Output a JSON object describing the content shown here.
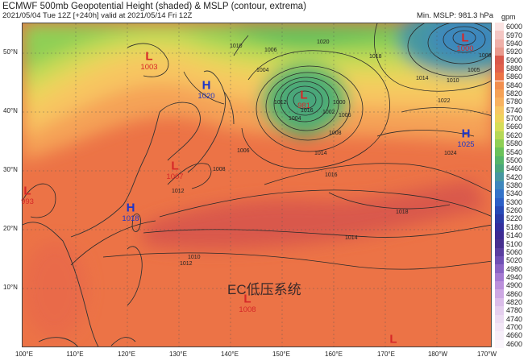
{
  "header": {
    "title": "ECMWF 500mb Geopotential Height (shaded) & MSLP (contour, extrema)",
    "subtitle": "2021/05/04 Tue 12Z [+240h] valid at 2021/05/14 Fri 12Z",
    "min_mslp": "Min. MSLP: 981.3 hPa"
  },
  "colorbar": {
    "unit": "gpm",
    "levels": [
      "6000",
      "5970",
      "5940",
      "5920",
      "5900",
      "5880",
      "5860",
      "5840",
      "5820",
      "5780",
      "5740",
      "5700",
      "5660",
      "5620",
      "5580",
      "5540",
      "5500",
      "5460",
      "5420",
      "5380",
      "5340",
      "5300",
      "5260",
      "5220",
      "5180",
      "5140",
      "5100",
      "5060",
      "5020",
      "4980",
      "4940",
      "4900",
      "4860",
      "4820",
      "4780",
      "4740",
      "4700",
      "4660",
      "4600"
    ],
    "colors": [
      "#fbe3e2",
      "#f4c6c3",
      "#efb0a8",
      "#e99a8d",
      "#d9594b",
      "#e0614c",
      "#ec7346",
      "#f28f4f",
      "#f5a256",
      "#f8b25f",
      "#f7c764",
      "#eed35c",
      "#d6dd58",
      "#b6d856",
      "#8fcf55",
      "#6bc25a",
      "#55b56a",
      "#4aa67c",
      "#4797a1",
      "#3e87bd",
      "#3473c9",
      "#2c5fc7",
      "#2749b6",
      "#2a3aa6",
      "#332f9d",
      "#3d2b93",
      "#47308f",
      "#5a3ea0",
      "#6f4fb5",
      "#8a63c4",
      "#a57ad2",
      "#bb90db",
      "#cda8e3",
      "#dbbde9",
      "#e5cfee",
      "#ecdcf2",
      "#f2e6f6",
      "#f6eef9",
      "#faf5fc"
    ]
  },
  "axes": {
    "lon_labels": [
      "100°E",
      "110°E",
      "120°E",
      "130°E",
      "140°E",
      "150°E",
      "160°E",
      "170°E",
      "180°W",
      "170°W"
    ],
    "lat_labels": [
      "50°N",
      "40°N",
      "30°N",
      "20°N",
      "10°N"
    ]
  },
  "extrema": [
    {
      "type": "L",
      "value": "1003",
      "color": "#d62828"
    },
    {
      "type": "H",
      "value": "1020",
      "color": "#1c35c9"
    },
    {
      "type": "L",
      "value": "981",
      "color": "#d62828"
    },
    {
      "type": "L",
      "value": "1000",
      "color": "#d62828"
    },
    {
      "type": "H",
      "value": "1025",
      "color": "#1c35c9"
    },
    {
      "type": "L",
      "value": "1007",
      "color": "#d62828"
    },
    {
      "type": "L",
      "value": "993",
      "color": "#d62828"
    },
    {
      "type": "H",
      "value": "1018",
      "color": "#1c35c9"
    },
    {
      "type": "L",
      "value": "1008",
      "color": "#d62828"
    },
    {
      "type": "L",
      "value": "",
      "color": "#d62828"
    }
  ],
  "isobar_labels": [
    "1020",
    "1018",
    "1014",
    "1012",
    "1016",
    "1004",
    "1008",
    "1006",
    "1002",
    "1000",
    "1022",
    "1024",
    "1010",
    "1005",
    "1008",
    "1018",
    "1014",
    "1012",
    "1010",
    "1016",
    "1014",
    "1010",
    "1006",
    "1004",
    "1006",
    "1008",
    "1012"
  ],
  "annotation": "EC低压系统"
}
